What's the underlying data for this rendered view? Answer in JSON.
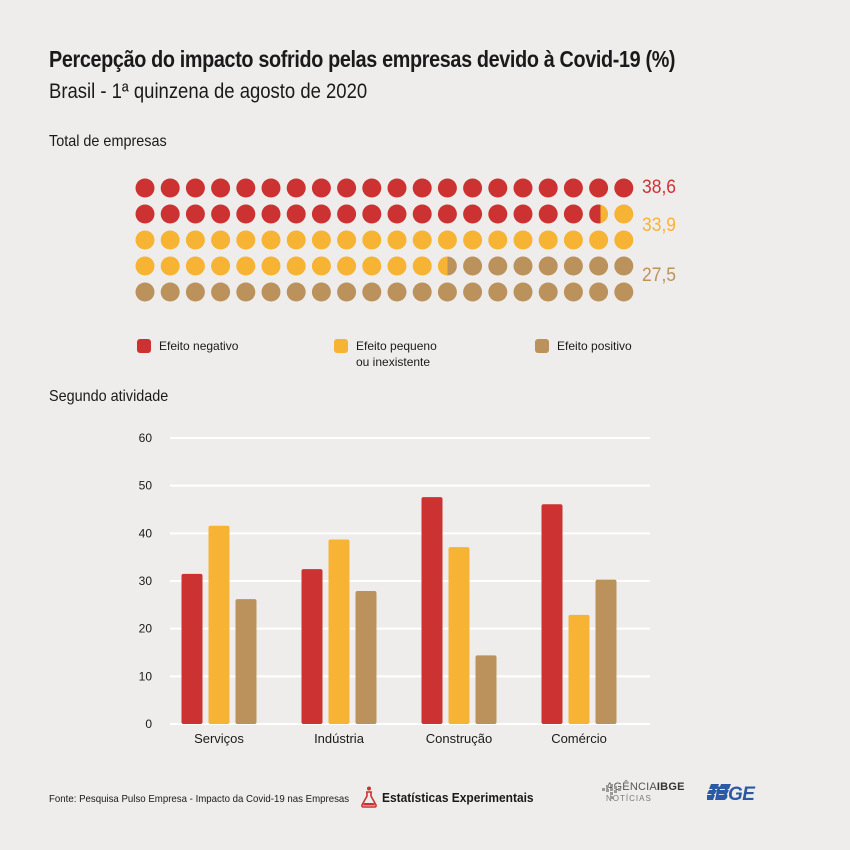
{
  "title": "Percepção do impacto sofrido pelas empresas devido à Covid-19 (%)",
  "subtitle": "Brasil - 1ª quinzena de agosto de 2020",
  "section_total": "Total de empresas",
  "section_activity": "Segundo atividade",
  "colors": {
    "negativo": "#cd3232",
    "pequeno": "#f7b333",
    "positivo": "#bc925c",
    "grid": "#ffffff",
    "background": "#efedeb"
  },
  "legend": [
    {
      "label": "Efeito negativo",
      "color": "#cd3232"
    },
    {
      "label": "Efeito pequeno\nou inexistente",
      "color": "#f7b333"
    },
    {
      "label": "Efeito positivo",
      "color": "#bc925c"
    }
  ],
  "chart_data": [
    {
      "type": "waffle",
      "title": "Total de empresas",
      "grid": {
        "rows": 5,
        "cols": 20
      },
      "categories": [
        "Efeito negativo",
        "Efeito pequeno ou inexistente",
        "Efeito positivo"
      ],
      "values": [
        38.6,
        33.9,
        27.5
      ],
      "value_labels": [
        "38,6",
        "33,9",
        "27,5"
      ]
    },
    {
      "type": "bar",
      "title": "Segundo atividade",
      "categories": [
        "Serviços",
        "Indústria",
        "Construção",
        "Comércio"
      ],
      "series": [
        {
          "name": "Efeito negativo",
          "values": [
            31.5,
            32.5,
            47.6,
            46.1
          ]
        },
        {
          "name": "Efeito pequeno ou inexistente",
          "values": [
            41.6,
            38.7,
            37.1,
            22.9
          ]
        },
        {
          "name": "Efeito positivo",
          "values": [
            26.2,
            27.9,
            14.4,
            30.3
          ]
        }
      ],
      "ylim": [
        0,
        60
      ],
      "yticks": [
        0,
        10,
        20,
        30,
        40,
        50,
        60
      ],
      "grid": true
    }
  ],
  "footer": {
    "source": "Fonte: Pesquisa Pulso Empresa - Impacto da Covid-19 nas Empresas",
    "experimental": "Estatísticas Experimentais",
    "agencia_prefix": "AGÊNCIA",
    "agencia_bold": "IBGE",
    "agencia_sub": "NOTÍCIAS",
    "ibge": "IBGE"
  }
}
